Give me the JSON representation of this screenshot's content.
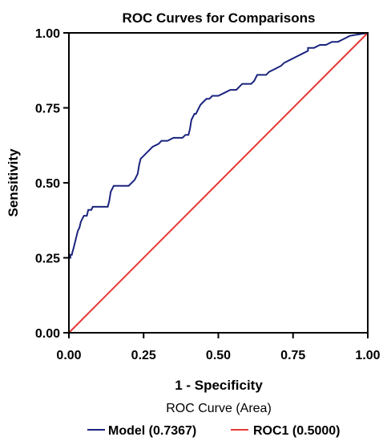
{
  "chart_data": {
    "type": "line",
    "title": "ROC Curves for Comparisons",
    "xlabel": "1 - Specificity",
    "ylabel": "Sensitivity",
    "xlim": [
      0,
      1
    ],
    "ylim": [
      0,
      1
    ],
    "x_ticks": [
      "0.00",
      "0.25",
      "0.50",
      "0.75",
      "1.00"
    ],
    "y_ticks": [
      "0.00",
      "0.25",
      "0.50",
      "0.75",
      "1.00"
    ],
    "grid": false,
    "legend_position": "bottom",
    "legend_title": "ROC Curve (Area)",
    "series": [
      {
        "name": "Model (0.7367)",
        "color": "#1a237e",
        "x": [
          0.0,
          0.0,
          0.005,
          0.005,
          0.01,
          0.012,
          0.015,
          0.02,
          0.025,
          0.03,
          0.035,
          0.04,
          0.05,
          0.06,
          0.065,
          0.075,
          0.08,
          0.09,
          0.1,
          0.13,
          0.135,
          0.14,
          0.145,
          0.15,
          0.17,
          0.2,
          0.22,
          0.23,
          0.235,
          0.24,
          0.25,
          0.26,
          0.27,
          0.28,
          0.3,
          0.31,
          0.33,
          0.35,
          0.38,
          0.39,
          0.4,
          0.405,
          0.41,
          0.42,
          0.425,
          0.43,
          0.44,
          0.45,
          0.46,
          0.47,
          0.48,
          0.5,
          0.52,
          0.54,
          0.56,
          0.57,
          0.58,
          0.61,
          0.62,
          0.63,
          0.66,
          0.67,
          0.69,
          0.71,
          0.72,
          0.74,
          0.76,
          0.78,
          0.8,
          0.8,
          0.82,
          0.84,
          0.86,
          0.88,
          0.9,
          0.92,
          0.94,
          1.0
        ],
        "values": [
          0.0,
          0.25,
          0.25,
          0.26,
          0.26,
          0.27,
          0.28,
          0.3,
          0.32,
          0.34,
          0.35,
          0.37,
          0.39,
          0.39,
          0.41,
          0.41,
          0.42,
          0.42,
          0.42,
          0.42,
          0.44,
          0.47,
          0.48,
          0.49,
          0.49,
          0.49,
          0.51,
          0.53,
          0.56,
          0.58,
          0.59,
          0.6,
          0.61,
          0.62,
          0.63,
          0.64,
          0.64,
          0.65,
          0.65,
          0.66,
          0.66,
          0.68,
          0.71,
          0.73,
          0.73,
          0.74,
          0.76,
          0.77,
          0.78,
          0.78,
          0.79,
          0.79,
          0.8,
          0.81,
          0.81,
          0.82,
          0.83,
          0.83,
          0.84,
          0.86,
          0.86,
          0.87,
          0.88,
          0.89,
          0.9,
          0.91,
          0.92,
          0.93,
          0.94,
          0.95,
          0.95,
          0.96,
          0.96,
          0.97,
          0.97,
          0.98,
          0.99,
          1.0
        ]
      },
      {
        "name": "ROC1 (0.5000)",
        "color": "#e53935",
        "x": [
          0,
          1
        ],
        "values": [
          0,
          1
        ]
      }
    ]
  }
}
